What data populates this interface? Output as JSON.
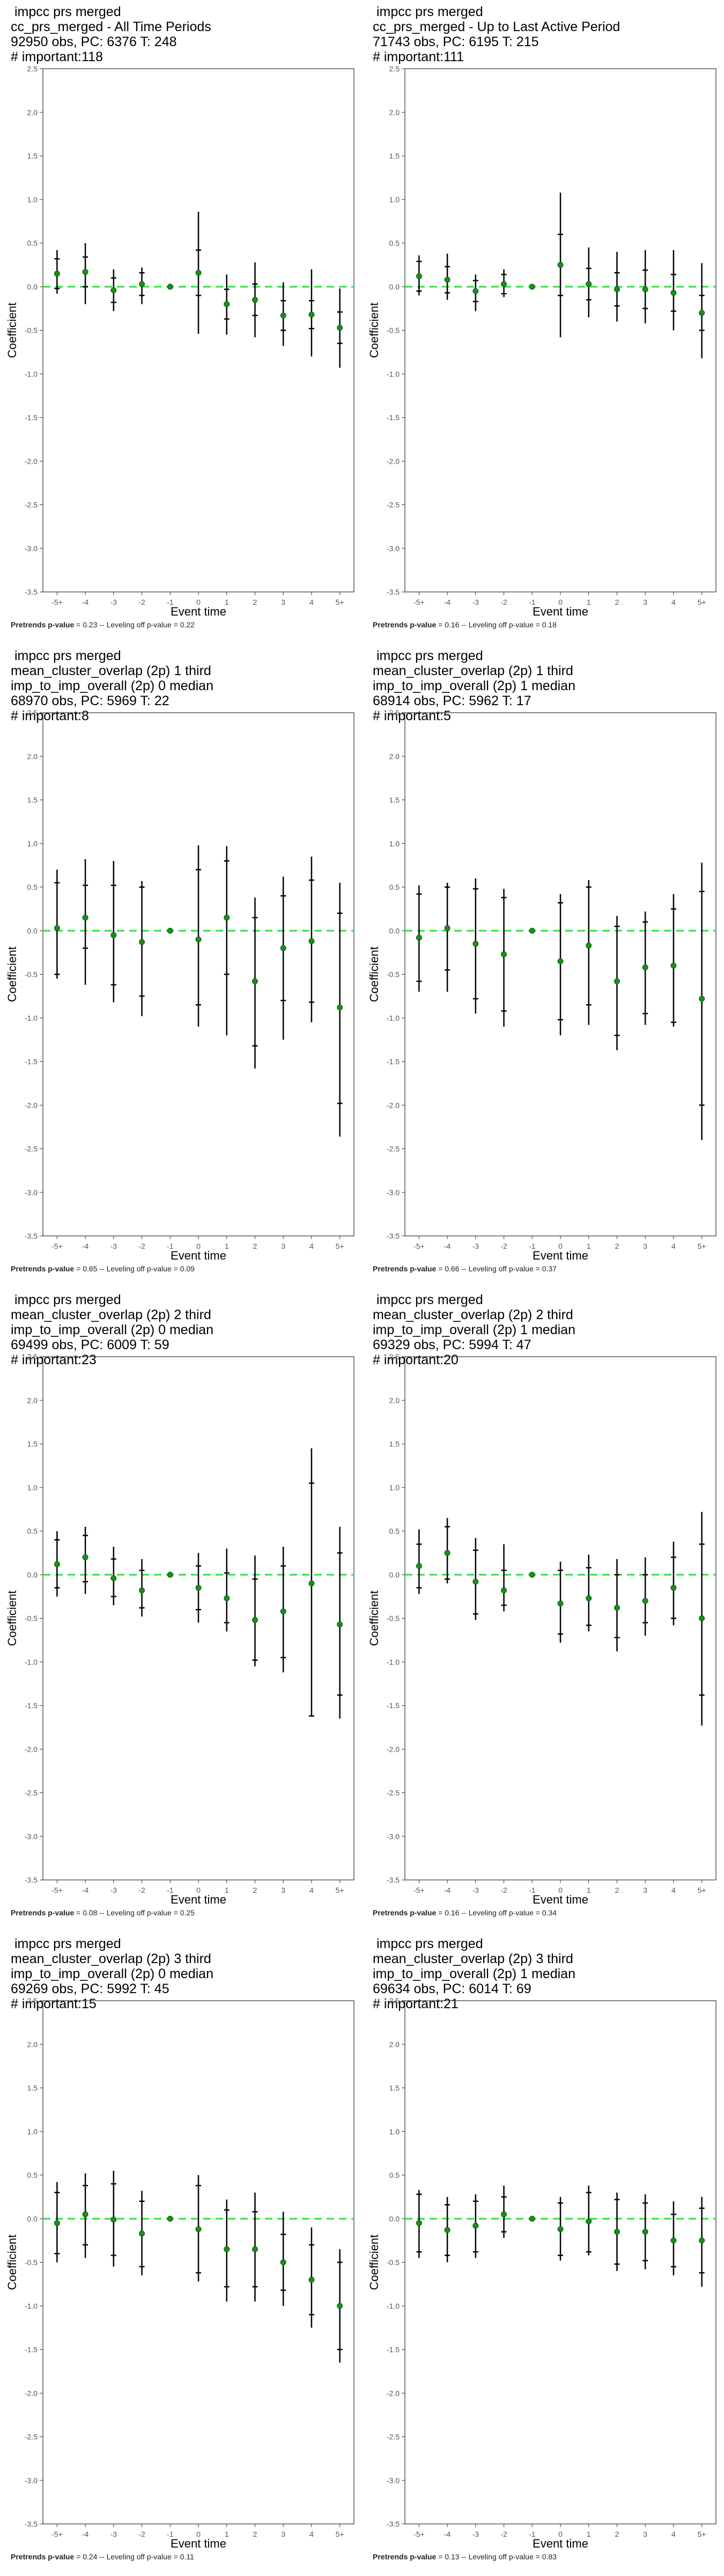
{
  "colors": {
    "reference_line": "#33dd44",
    "point": "#1a8f1a",
    "interval": "#000000",
    "frame": "#333333",
    "axis_text": "#555555"
  },
  "chart_data": [
    {
      "type": "scatter",
      "title_lines": [
        " impcc prs merged",
        "cc_prs_merged - All Time Periods",
        "92950 obs, PC: 6376 T: 248",
        "# important:118"
      ],
      "xlabel": "Event time",
      "ylabel": "Coefficient",
      "ylim": [
        -3.5,
        2.5
      ],
      "yticks": [
        "2.5",
        "2.0",
        "1.5",
        "1.0",
        "0.5",
        "0.0",
        "-0.5",
        "-1.0",
        "-1.5",
        "-2.0",
        "-2.5",
        "-3.0",
        "-3.5"
      ],
      "categories": [
        "-5+",
        "-4",
        "-3",
        "-2",
        "-1",
        "0",
        "1",
        "2",
        "3",
        "4",
        "5+"
      ],
      "estimates": [
        0.15,
        0.17,
        -0.04,
        0.03,
        0.0,
        0.16,
        -0.2,
        -0.15,
        -0.33,
        -0.32,
        -0.47
      ],
      "inner_low": [
        -0.02,
        0.0,
        -0.18,
        -0.1,
        0.0,
        -0.1,
        -0.37,
        -0.33,
        -0.5,
        -0.48,
        -0.65
      ],
      "inner_high": [
        0.32,
        0.34,
        0.1,
        0.16,
        0.0,
        0.42,
        -0.03,
        0.03,
        -0.16,
        -0.16,
        -0.29
      ],
      "outer_low": [
        -0.08,
        -0.2,
        -0.28,
        -0.2,
        0.0,
        -0.54,
        -0.55,
        -0.58,
        -0.68,
        -0.8,
        -0.93
      ],
      "outer_high": [
        0.42,
        0.5,
        0.2,
        0.22,
        0.0,
        0.86,
        0.14,
        0.28,
        0.05,
        0.2,
        -0.02
      ],
      "reference_y": 0,
      "grid": false,
      "footer_label": "Pretrends p-value",
      "footer_rest": " = 0.23 -- Leveling off p-value = 0.22"
    },
    {
      "type": "scatter",
      "title_lines": [
        " impcc prs merged",
        "cc_prs_merged - Up to Last Active Period",
        "71743 obs, PC: 6195 T: 215",
        "# important:111"
      ],
      "xlabel": "Event time",
      "ylabel": "Coefficient",
      "ylim": [
        -3.5,
        2.5
      ],
      "yticks": [
        "2.5",
        "2.0",
        "1.5",
        "1.0",
        "0.5",
        "0.0",
        "-0.5",
        "-1.0",
        "-1.5",
        "-2.0",
        "-2.5",
        "-3.0",
        "-3.5"
      ],
      "categories": [
        "-5+",
        "-4",
        "-3",
        "-2",
        "-1",
        "0",
        "1",
        "2",
        "3",
        "4",
        "5+"
      ],
      "estimates": [
        0.12,
        0.08,
        -0.05,
        0.03,
        0.0,
        0.25,
        0.03,
        -0.03,
        -0.03,
        -0.07,
        -0.3
      ],
      "inner_low": [
        -0.05,
        -0.07,
        -0.17,
        -0.08,
        0.0,
        -0.1,
        -0.15,
        -0.22,
        -0.25,
        -0.28,
        -0.5
      ],
      "inner_high": [
        0.29,
        0.23,
        0.07,
        0.14,
        0.0,
        0.6,
        0.21,
        0.16,
        0.19,
        0.14,
        -0.1
      ],
      "outer_low": [
        -0.1,
        -0.15,
        -0.28,
        -0.12,
        0.0,
        -0.58,
        -0.35,
        -0.4,
        -0.42,
        -0.5,
        -0.82
      ],
      "outer_high": [
        0.36,
        0.38,
        0.14,
        0.2,
        0.0,
        1.08,
        0.45,
        0.4,
        0.42,
        0.42,
        0.27
      ],
      "reference_y": 0,
      "grid": false,
      "footer_label": "Pretrends p-value",
      "footer_rest": " = 0.16 -- Leveling off p-value = 0.18"
    },
    {
      "type": "scatter",
      "title_lines": [
        " impcc prs merged",
        "mean_cluster_overlap (2p) 1 third",
        "imp_to_imp_overall (2p) 0 median",
        "68970 obs, PC: 5969 T: 22",
        "# important:8"
      ],
      "xlabel": "Event time",
      "ylabel": "Coefficient",
      "ylim": [
        -3.5,
        2.5
      ],
      "yticks": [
        "2.5",
        "2.0",
        "1.5",
        "1.0",
        "0.5",
        "0.0",
        "-0.5",
        "-1.0",
        "-1.5",
        "-2.0",
        "-2.5",
        "-3.0",
        "-3.5"
      ],
      "categories": [
        "-5+",
        "-4",
        "-3",
        "-2",
        "-1",
        "0",
        "1",
        "2",
        "3",
        "4",
        "5+"
      ],
      "estimates": [
        0.03,
        0.15,
        -0.05,
        -0.13,
        0.0,
        -0.1,
        0.15,
        -0.58,
        -0.2,
        -0.12,
        -0.88
      ],
      "inner_low": [
        -0.5,
        -0.2,
        -0.62,
        -0.75,
        0.0,
        -0.85,
        -0.5,
        -1.32,
        -0.8,
        -0.82,
        -1.98
      ],
      "inner_high": [
        0.55,
        0.52,
        0.52,
        0.5,
        0.0,
        0.7,
        0.8,
        0.15,
        0.4,
        0.58,
        0.2
      ],
      "outer_low": [
        -0.55,
        -0.62,
        -0.82,
        -0.98,
        0.0,
        -1.1,
        -1.2,
        -1.58,
        -1.25,
        -1.05,
        -2.36
      ],
      "outer_high": [
        0.7,
        0.82,
        0.8,
        0.57,
        0.0,
        0.98,
        0.97,
        0.38,
        0.62,
        0.85,
        0.55
      ],
      "reference_y": 0,
      "grid": false,
      "footer_label": "Pretrends p-value",
      "footer_rest": " = 0.65 -- Leveling off p-value = 0.09"
    },
    {
      "type": "scatter",
      "title_lines": [
        " impcc prs merged",
        "mean_cluster_overlap (2p) 1 third",
        "imp_to_imp_overall (2p) 1 median",
        "68914 obs, PC: 5962 T: 17",
        "# important:5"
      ],
      "xlabel": "Event time",
      "ylabel": "Coefficient",
      "ylim": [
        -3.5,
        2.5
      ],
      "yticks": [
        "2.5",
        "2.0",
        "1.5",
        "1.0",
        "0.5",
        "0.0",
        "-0.5",
        "-1.0",
        "-1.5",
        "-2.0",
        "-2.5",
        "-3.0",
        "-3.5"
      ],
      "categories": [
        "-5+",
        "-4",
        "-3",
        "-2",
        "-1",
        "0",
        "1",
        "2",
        "3",
        "4",
        "5+"
      ],
      "estimates": [
        -0.08,
        0.03,
        -0.15,
        -0.27,
        0.0,
        -0.35,
        -0.17,
        -0.58,
        -0.42,
        -0.4,
        -0.78
      ],
      "inner_low": [
        -0.58,
        -0.45,
        -0.78,
        -0.92,
        0.0,
        -1.02,
        -0.85,
        -1.2,
        -0.95,
        -1.05,
        -2.0
      ],
      "inner_high": [
        0.42,
        0.5,
        0.48,
        0.38,
        0.0,
        0.32,
        0.5,
        0.05,
        0.1,
        0.25,
        0.45
      ],
      "outer_low": [
        -0.7,
        -0.7,
        -0.95,
        -1.1,
        0.0,
        -1.2,
        -1.08,
        -1.37,
        -1.08,
        -1.1,
        -2.4
      ],
      "outer_high": [
        0.52,
        0.55,
        0.6,
        0.48,
        0.0,
        0.42,
        0.58,
        0.17,
        0.22,
        0.42,
        0.78
      ],
      "reference_y": 0,
      "grid": false,
      "footer_label": "Pretrends p-value",
      "footer_rest": " = 0.66 -- Leveling off p-value = 0.37"
    },
    {
      "type": "scatter",
      "title_lines": [
        " impcc prs merged",
        "mean_cluster_overlap (2p) 2 third",
        "imp_to_imp_overall (2p) 0 median",
        "69499 obs, PC: 6009 T: 59",
        "# important:23"
      ],
      "xlabel": "Event time",
      "ylabel": "Coefficient",
      "ylim": [
        -3.5,
        2.5
      ],
      "yticks": [
        "2.5",
        "2.0",
        "1.5",
        "1.0",
        "0.5",
        "0.0",
        "-0.5",
        "-1.0",
        "-1.5",
        "-2.0",
        "-2.5",
        "-3.0",
        "-3.5"
      ],
      "categories": [
        "-5+",
        "-4",
        "-3",
        "-2",
        "-1",
        "0",
        "1",
        "2",
        "3",
        "4",
        "5+"
      ],
      "estimates": [
        0.12,
        0.2,
        -0.04,
        -0.18,
        0.0,
        -0.15,
        -0.27,
        -0.52,
        -0.42,
        -0.1,
        -0.57
      ],
      "inner_low": [
        -0.15,
        -0.08,
        -0.25,
        -0.38,
        0.0,
        -0.4,
        -0.55,
        -0.98,
        -0.95,
        -1.62,
        -1.38
      ],
      "inner_high": [
        0.4,
        0.45,
        0.18,
        0.05,
        0.0,
        0.1,
        0.02,
        -0.05,
        0.1,
        1.05,
        0.25
      ],
      "outer_low": [
        -0.25,
        -0.22,
        -0.35,
        -0.48,
        0.0,
        -0.55,
        -0.65,
        -1.05,
        -1.12,
        -1.62,
        -1.65
      ],
      "outer_high": [
        0.5,
        0.55,
        0.32,
        0.18,
        0.0,
        0.25,
        0.3,
        0.22,
        0.32,
        1.45,
        0.55
      ],
      "reference_y": 0,
      "grid": false,
      "footer_label": "Pretrends p-value",
      "footer_rest": " = 0.08 -- Leveling off p-value = 0.25"
    },
    {
      "type": "scatter",
      "title_lines": [
        " impcc prs merged",
        "mean_cluster_overlap (2p) 2 third",
        "imp_to_imp_overall (2p) 1 median",
        "69329 obs, PC: 5994 T: 47",
        "# important:20"
      ],
      "xlabel": "Event time",
      "ylabel": "Coefficient",
      "ylim": [
        -3.5,
        2.5
      ],
      "yticks": [
        "2.5",
        "2.0",
        "1.5",
        "1.0",
        "0.5",
        "0.0",
        "-0.5",
        "-1.0",
        "-1.5",
        "-2.0",
        "-2.5",
        "-3.0",
        "-3.5"
      ],
      "categories": [
        "-5+",
        "-4",
        "-3",
        "-2",
        "-1",
        "0",
        "1",
        "2",
        "3",
        "4",
        "5+"
      ],
      "estimates": [
        0.1,
        0.25,
        -0.08,
        -0.18,
        0.0,
        -0.33,
        -0.27,
        -0.38,
        -0.3,
        -0.15,
        -0.5
      ],
      "inner_low": [
        -0.15,
        -0.05,
        -0.45,
        -0.35,
        0.0,
        -0.68,
        -0.58,
        -0.72,
        -0.55,
        -0.5,
        -1.38
      ],
      "inner_high": [
        0.35,
        0.55,
        0.28,
        0.05,
        0.0,
        0.05,
        0.08,
        0.0,
        0.0,
        0.2,
        0.35
      ],
      "outer_low": [
        -0.22,
        -0.1,
        -0.52,
        -0.42,
        0.0,
        -0.78,
        -0.65,
        -0.88,
        -0.7,
        -0.58,
        -1.73
      ],
      "outer_high": [
        0.52,
        0.65,
        0.42,
        0.35,
        0.0,
        0.15,
        0.23,
        0.18,
        0.2,
        0.38,
        0.72
      ],
      "reference_y": 0,
      "grid": false,
      "footer_label": "Pretrends p-value",
      "footer_rest": " = 0.16 -- Leveling off p-value = 0.34"
    },
    {
      "type": "scatter",
      "title_lines": [
        " impcc prs merged",
        "mean_cluster_overlap (2p) 3 third",
        "imp_to_imp_overall (2p) 0 median",
        "69269 obs, PC: 5992 T: 45",
        "# important:15"
      ],
      "xlabel": "Event time",
      "ylabel": "Coefficient",
      "ylim": [
        -3.5,
        2.5
      ],
      "yticks": [
        "2.5",
        "2.0",
        "1.5",
        "1.0",
        "0.5",
        "0.0",
        "-0.5",
        "-1.0",
        "-1.5",
        "-2.0",
        "-2.5",
        "-3.0",
        "-3.5"
      ],
      "categories": [
        "-5+",
        "-4",
        "-3",
        "-2",
        "-1",
        "0",
        "1",
        "2",
        "3",
        "4",
        "5+"
      ],
      "estimates": [
        -0.05,
        0.05,
        -0.01,
        -0.17,
        0.0,
        -0.12,
        -0.35,
        -0.35,
        -0.5,
        -0.7,
        -1.0
      ],
      "inner_low": [
        -0.4,
        -0.3,
        -0.42,
        -0.55,
        0.0,
        -0.62,
        -0.78,
        -0.78,
        -0.82,
        -1.1,
        -1.5
      ],
      "inner_high": [
        0.3,
        0.38,
        0.4,
        0.2,
        0.0,
        0.38,
        0.1,
        0.08,
        -0.18,
        -0.3,
        -0.5
      ],
      "outer_low": [
        -0.5,
        -0.45,
        -0.55,
        -0.65,
        0.0,
        -0.72,
        -0.95,
        -0.95,
        -1.0,
        -1.25,
        -1.65
      ],
      "outer_high": [
        0.42,
        0.52,
        0.55,
        0.32,
        0.0,
        0.5,
        0.22,
        0.3,
        0.08,
        -0.1,
        -0.35
      ],
      "reference_y": 0,
      "grid": false,
      "footer_label": "Pretrends p-value",
      "footer_rest": " = 0.24 -- Leveling off p-value = 0.11"
    },
    {
      "type": "scatter",
      "title_lines": [
        " impcc prs merged",
        "mean_cluster_overlap (2p) 3 third",
        "imp_to_imp_overall (2p) 1 median",
        "69634 obs, PC: 6014 T: 69",
        "# important:21"
      ],
      "xlabel": "Event time",
      "ylabel": "Coefficient",
      "ylim": [
        -3.5,
        2.5
      ],
      "yticks": [
        "2.5",
        "2.0",
        "1.5",
        "1.0",
        "0.5",
        "0.0",
        "-0.5",
        "-1.0",
        "-1.5",
        "-2.0",
        "-2.5",
        "-3.0",
        "-3.5"
      ],
      "categories": [
        "-5+",
        "-4",
        "-3",
        "-2",
        "-1",
        "0",
        "1",
        "2",
        "3",
        "4",
        "5+"
      ],
      "estimates": [
        -0.05,
        -0.13,
        -0.08,
        0.05,
        0.0,
        -0.12,
        -0.03,
        -0.15,
        -0.15,
        -0.25,
        -0.25
      ],
      "inner_low": [
        -0.38,
        -0.42,
        -0.38,
        -0.15,
        0.0,
        -0.42,
        -0.38,
        -0.52,
        -0.48,
        -0.55,
        -0.62
      ],
      "inner_high": [
        0.28,
        0.16,
        0.2,
        0.25,
        0.0,
        0.18,
        0.3,
        0.22,
        0.18,
        0.05,
        0.12
      ],
      "outer_low": [
        -0.45,
        -0.5,
        -0.45,
        -0.22,
        0.0,
        -0.48,
        -0.42,
        -0.6,
        -0.58,
        -0.65,
        -0.78
      ],
      "outer_high": [
        0.33,
        0.25,
        0.28,
        0.38,
        0.0,
        0.25,
        0.38,
        0.3,
        0.28,
        0.2,
        0.25
      ],
      "reference_y": 0,
      "grid": false,
      "footer_label": "Pretrends p-value",
      "footer_rest": " = 0.13 -- Leveling off p-value = 0.83"
    }
  ]
}
